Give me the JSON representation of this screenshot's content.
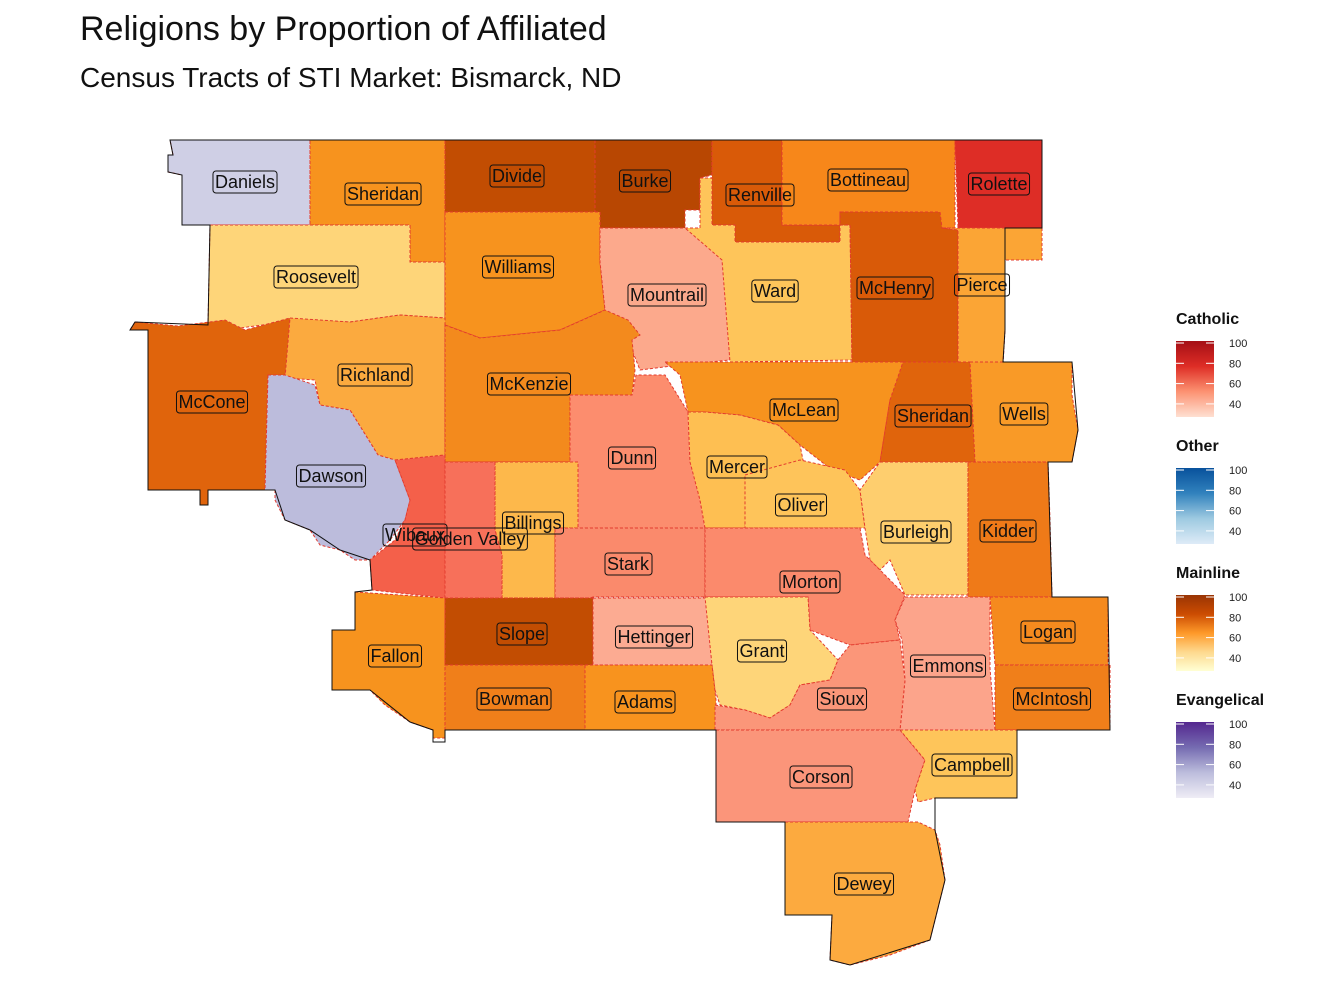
{
  "title": "Religions by Proportion of Affiliated",
  "subtitle": "Census Tracts of STI Market: Bismarck, ND",
  "colors": {
    "catholic": [
      "#fee0d2",
      "#fc9272",
      "#de2d26",
      "#a50f15"
    ],
    "other": [
      "#deebf7",
      "#9ecae1",
      "#3182bd",
      "#08519c"
    ],
    "mainline": [
      "#ffffd4",
      "#fed98e",
      "#fe9929",
      "#cc4c02",
      "#993404"
    ],
    "evangelical": [
      "#efedf5",
      "#bcbddc",
      "#756bb1",
      "#54278f"
    ]
  },
  "legends": [
    {
      "key": "catholic",
      "title": "Catholic",
      "ticks": [
        "100",
        "80",
        "60",
        "40"
      ]
    },
    {
      "key": "other",
      "title": "Other",
      "ticks": [
        "100",
        "80",
        "60",
        "40"
      ]
    },
    {
      "key": "mainline",
      "title": "Mainline",
      "ticks": [
        "100",
        "80",
        "60",
        "40"
      ]
    },
    {
      "key": "evangelical",
      "title": "Evangelical",
      "ticks": [
        "100",
        "80",
        "60",
        "40"
      ]
    }
  ],
  "counties": [
    {
      "name": "Daniels",
      "fill": "#cfcfe5"
    },
    {
      "name": "Sheridan",
      "fill": "#f7931e"
    },
    {
      "name": "Divide",
      "fill": "#c24d02"
    },
    {
      "name": "Burke",
      "fill": "#b84702"
    },
    {
      "name": "Renville",
      "fill": "#d95a08"
    },
    {
      "name": "Bottineau",
      "fill": "#f7871a"
    },
    {
      "name": "Rolette",
      "fill": "#de2d26"
    },
    {
      "name": "Roosevelt",
      "fill": "#fed579"
    },
    {
      "name": "Williams",
      "fill": "#f7931e"
    },
    {
      "name": "Mountrail",
      "fill": "#fca98c"
    },
    {
      "name": "Ward",
      "fill": "#fec55a"
    },
    {
      "name": "McHenry",
      "fill": "#d95a08"
    },
    {
      "name": "Pierce",
      "fill": "#fba535"
    },
    {
      "name": "McCone",
      "fill": "#e0640c"
    },
    {
      "name": "Richland",
      "fill": "#fbaa3f"
    },
    {
      "name": "McKenzie",
      "fill": "#f38a1d"
    },
    {
      "name": "McLean",
      "fill": "#f7931e"
    },
    {
      "name": "Sheridan",
      "fill": "#e0640c"
    },
    {
      "name": "Wells",
      "fill": "#f99a27"
    },
    {
      "name": "Dawson",
      "fill": "#bcbcdc"
    },
    {
      "name": "Dunn",
      "fill": "#fc8d6e"
    },
    {
      "name": "Mercer",
      "fill": "#febf52"
    },
    {
      "name": "Oliver",
      "fill": "#fec45a"
    },
    {
      "name": "Burleigh",
      "fill": "#fece6e"
    },
    {
      "name": "Kidder",
      "fill": "#ef7a18"
    },
    {
      "name": "Billings",
      "fill": "#fdb84b"
    },
    {
      "name": "Wibaux",
      "fill": "#f4604a"
    },
    {
      "name": "Golden Valley",
      "fill": "#f7705a"
    },
    {
      "name": "Stark",
      "fill": "#fa8a6c"
    },
    {
      "name": "Morton",
      "fill": "#fb8a6c"
    },
    {
      "name": "Fallon",
      "fill": "#f7931e"
    },
    {
      "name": "Slope",
      "fill": "#c24d02"
    },
    {
      "name": "Hettinger",
      "fill": "#fcab92"
    },
    {
      "name": "Grant",
      "fill": "#fed579"
    },
    {
      "name": "Emmons",
      "fill": "#fca48b"
    },
    {
      "name": "Logan",
      "fill": "#f58a1e"
    },
    {
      "name": "Bowman",
      "fill": "#f07f1a"
    },
    {
      "name": "Adams",
      "fill": "#f8931e"
    },
    {
      "name": "Sioux",
      "fill": "#fb9679"
    },
    {
      "name": "McIntosh",
      "fill": "#f07f1a"
    },
    {
      "name": "Corson",
      "fill": "#fb957a"
    },
    {
      "name": "Campbell",
      "fill": "#fec55a"
    },
    {
      "name": "Dewey",
      "fill": "#fcaa3f"
    }
  ]
}
